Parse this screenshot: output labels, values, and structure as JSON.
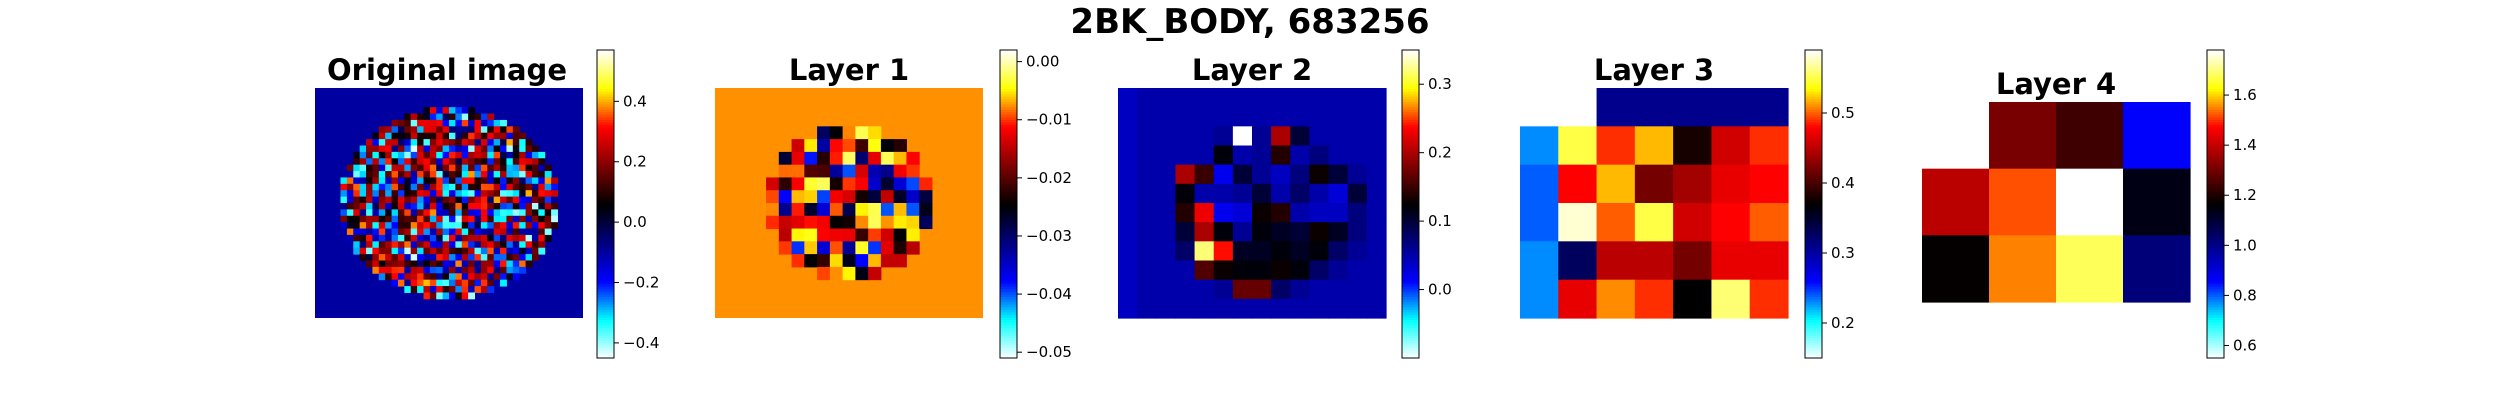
{
  "figure": {
    "suptitle": "2BK_BODY, 683256"
  },
  "colors": {
    "background": "#ffffff",
    "colorbar_outline": "#000000",
    "colormap_stops": [
      "#ffffff",
      "#00ffff",
      "#0000ff",
      "#000080",
      "#000000",
      "#800000",
      "#ff0000",
      "#ffff00",
      "#ffffff"
    ]
  },
  "chart_data": [
    {
      "type": "heatmap",
      "title": "Original image",
      "grid": false,
      "colorbar": {
        "min": -0.45,
        "max": 0.57,
        "ticks": [
          -0.4,
          -0.2,
          0.0,
          0.2,
          0.4
        ],
        "tick_labels": [
          "−0.4",
          "−0.2",
          "0.0",
          "0.2",
          "0.4"
        ]
      },
      "background_value": -0.1,
      "shape": "circular-speckle",
      "rows": 36,
      "cols": 42
    },
    {
      "type": "heatmap",
      "title": "Layer 1",
      "grid": false,
      "colorbar": {
        "min": -0.051,
        "max": 0.002,
        "ticks": [
          -0.05,
          -0.04,
          -0.03,
          -0.02,
          -0.01,
          0.0
        ],
        "tick_labels": [
          "−0.05",
          "−0.04",
          "−0.03",
          "−0.02",
          "−0.01",
          "0.00"
        ]
      },
      "background_value": -0.0075,
      "shape": "circular-speckle",
      "rows": 18,
      "cols": 21
    },
    {
      "type": "heatmap",
      "title": "Layer 2",
      "grid": false,
      "colorbar": {
        "min": -0.1,
        "max": 0.35,
        "ticks": [
          0.0,
          0.1,
          0.2,
          0.3
        ],
        "tick_labels": [
          "0.0",
          "0.1",
          "0.2",
          "0.3"
        ]
      },
      "values": [
        [
          0.04,
          0.05,
          0.05,
          0.05,
          0.05,
          0.05,
          0.05,
          0.05,
          0.05,
          0.05,
          0.05,
          0.05,
          0.05,
          0.05
        ],
        [
          0.04,
          0.05,
          0.05,
          0.05,
          0.05,
          0.05,
          0.05,
          0.05,
          0.05,
          0.05,
          0.05,
          0.05,
          0.05,
          0.05
        ],
        [
          0.04,
          0.05,
          0.05,
          0.05,
          0.05,
          0.06,
          0.35,
          0.06,
          0.2,
          0.1,
          0.05,
          0.05,
          0.05,
          0.05
        ],
        [
          0.04,
          0.05,
          0.05,
          0.05,
          0.05,
          0.12,
          0.05,
          0.06,
          0.14,
          0.05,
          0.07,
          0.05,
          0.05,
          0.05
        ],
        [
          0.04,
          0.05,
          0.05,
          0.2,
          0.15,
          0.02,
          0.1,
          0.06,
          0.04,
          0.07,
          0.13,
          0.1,
          0.06,
          0.05
        ],
        [
          0.04,
          0.05,
          0.05,
          0.12,
          0.05,
          0.05,
          0.06,
          0.1,
          0.05,
          0.08,
          0.05,
          0.03,
          0.1,
          0.05
        ],
        [
          0.04,
          0.05,
          0.05,
          0.14,
          0.23,
          0.02,
          0.03,
          0.13,
          0.14,
          0.05,
          0.04,
          0.04,
          0.07,
          0.05
        ],
        [
          0.04,
          0.05,
          0.05,
          0.1,
          0.2,
          0.12,
          0.06,
          0.12,
          0.11,
          0.1,
          0.13,
          0.11,
          0.07,
          0.05
        ],
        [
          0.04,
          0.05,
          0.05,
          0.08,
          0.32,
          0.24,
          0.11,
          0.11,
          0.12,
          0.11,
          0.12,
          0.08,
          0.06,
          0.05
        ],
        [
          0.04,
          0.05,
          0.05,
          0.05,
          0.16,
          0.13,
          0.12,
          0.12,
          0.13,
          0.12,
          0.08,
          0.06,
          0.05,
          0.05
        ],
        [
          0.04,
          0.05,
          0.05,
          0.05,
          0.05,
          0.06,
          0.17,
          0.17,
          0.08,
          0.06,
          0.05,
          0.05,
          0.05,
          0.05
        ],
        [
          0.04,
          0.05,
          0.05,
          0.05,
          0.05,
          0.05,
          0.05,
          0.05,
          0.05,
          0.05,
          0.05,
          0.05,
          0.05,
          0.05
        ]
      ]
    },
    {
      "type": "heatmap",
      "title": "Layer 3",
      "grid": false,
      "colorbar": {
        "min": 0.15,
        "max": 0.59,
        "ticks": [
          0.2,
          0.3,
          0.4,
          0.5
        ],
        "tick_labels": [
          "0.2",
          "0.3",
          "0.4",
          "0.5"
        ]
      },
      "values": [
        [
          null,
          0.31,
          0.31,
          0.31,
          0.31,
          0.31
        ],
        [
          0.23,
          0.55,
          0.49,
          0.52,
          0.38,
          0.46,
          0.49
        ],
        [
          0.24,
          0.48,
          0.52,
          0.42,
          0.44,
          0.47,
          0.48
        ],
        [
          0.24,
          0.58,
          0.5,
          0.55,
          0.46,
          0.48,
          0.5
        ],
        [
          0.23,
          0.33,
          0.45,
          0.45,
          0.42,
          0.47,
          0.47
        ],
        [
          0.23,
          0.47,
          0.51,
          0.49,
          0.37,
          0.56,
          0.49
        ]
      ]
    },
    {
      "type": "heatmap",
      "title": "Layer 4",
      "grid": false,
      "colorbar": {
        "min": 0.55,
        "max": 1.78,
        "ticks": [
          0.6,
          0.8,
          1.0,
          1.2,
          1.4,
          1.6
        ],
        "tick_labels": [
          "0.6",
          "0.8",
          "1.0",
          "1.2",
          "1.4",
          "1.6"
        ]
      },
      "values": [
        [
          null,
          1.31,
          1.24,
          0.86
        ],
        [
          1.39,
          1.52,
          1.78,
          1.14
        ],
        [
          1.17,
          1.55,
          1.68,
          1.02
        ]
      ]
    }
  ]
}
